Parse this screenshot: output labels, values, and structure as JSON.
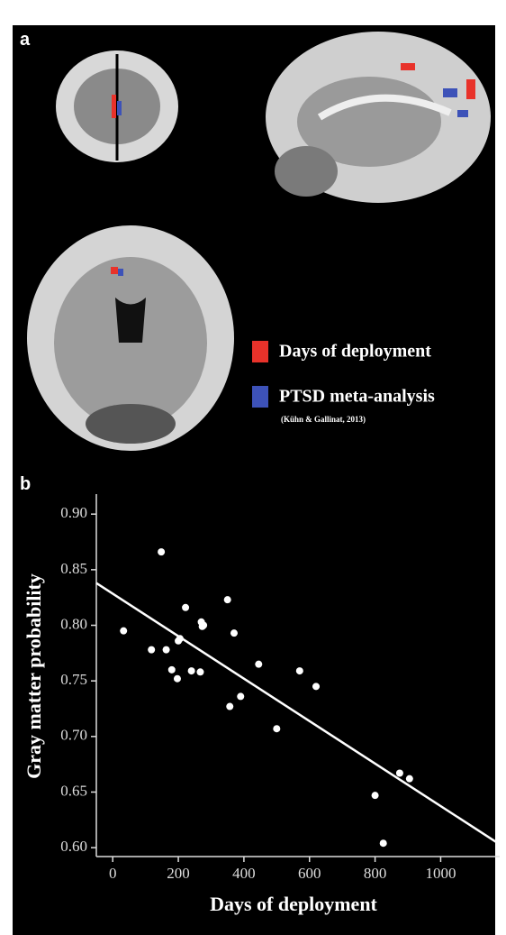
{
  "panel_a": {
    "label": "a",
    "legend": [
      {
        "name": "Days of deployment",
        "color": "#e8322a"
      },
      {
        "name": "PTSD meta-analysis",
        "color": "#3d52b8"
      }
    ],
    "citation": "(Kühn & Gallinat, 2013)"
  },
  "chart_data": {
    "type": "scatter",
    "panel_label": "b",
    "x_label": "Days of deployment",
    "y_label": "Gray matter probability",
    "x": [
      33,
      148,
      118,
      163,
      180,
      197,
      200,
      205,
      222,
      240,
      267,
      270,
      273,
      277,
      350,
      357,
      370,
      390,
      445,
      500,
      570,
      620,
      800,
      825,
      875,
      905
    ],
    "values": [
      0.795,
      0.866,
      0.778,
      0.778,
      0.76,
      0.752,
      0.786,
      0.788,
      0.816,
      0.759,
      0.758,
      0.803,
      0.799,
      0.8,
      0.823,
      0.727,
      0.793,
      0.736,
      0.765,
      0.707,
      0.759,
      0.745,
      0.647,
      0.604,
      0.667,
      0.662
    ],
    "color": "#ffffff",
    "trend_line": {
      "x": [
        -50,
        1180
      ],
      "y": [
        0.838,
        0.603
      ]
    },
    "xlim": [
      -50,
      1180
    ],
    "ylim": [
      0.592,
      0.918
    ],
    "xticks": [
      0,
      200,
      400,
      600,
      800,
      1000
    ],
    "yticks": [
      {
        "value": 0.6,
        "label": "0.60"
      },
      0.65,
      {
        "value": 0.7,
        "label": "0.70"
      },
      0.75,
      {
        "value": 0.8,
        "label": "0.80"
      },
      0.85,
      {
        "value": 0.9,
        "label": "0.90"
      }
    ]
  }
}
